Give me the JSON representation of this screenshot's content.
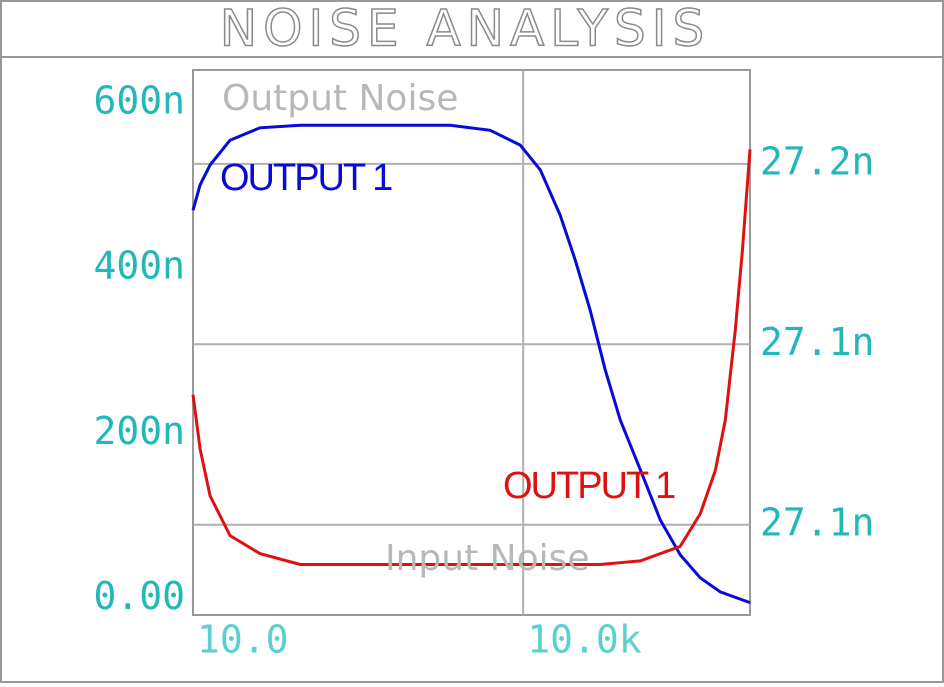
{
  "chart_data": {
    "type": "line",
    "title": "NOISE ANALYSIS",
    "annotations": [
      "Output Noise",
      "Input Noise"
    ],
    "xlog": true,
    "grid": true,
    "xlim": [
      10,
      1150000
    ],
    "xticks": [
      {
        "value": 10,
        "label": "10.0"
      },
      {
        "value": 10000,
        "label": "10.0k"
      }
    ],
    "ylim": [
      -2e-08,
      6.4e-07
    ],
    "yticks": [
      {
        "value": 0,
        "label": "0.00"
      },
      {
        "value": 2e-07,
        "label": "200n"
      },
      {
        "value": 4e-07,
        "label": "400n"
      },
      {
        "value": 6e-07,
        "label": "600n"
      }
    ],
    "y2lim": [
      2.7025e-08,
      2.7176e-08
    ],
    "y2ticks": [
      {
        "value": 2.705e-08,
        "label": "27.1n"
      },
      {
        "value": 2.71e-08,
        "label": "27.1n"
      },
      {
        "value": 2.715e-08,
        "label": "27.2n"
      }
    ],
    "series": [
      {
        "name": "OUTPUT 1",
        "color": "#0a0ad8",
        "x": [
          10,
          11.6,
          14.3,
          21.7,
          40.6,
          94,
          267,
          762,
          2170,
          5010,
          9400,
          14300,
          21700,
          29700,
          40600,
          55600,
          76200,
          116000,
          176000,
          267000,
          406000,
          618000,
          1150000
        ],
        "values": [
          4.7e-07,
          5.01e-07,
          5.25e-07,
          5.55e-07,
          5.7e-07,
          5.73e-07,
          5.73e-07,
          5.73e-07,
          5.73e-07,
          5.67e-07,
          5.49e-07,
          5.19e-07,
          4.64e-07,
          4.1e-07,
          3.49e-07,
          2.77e-07,
          2.16e-07,
          1.56e-07,
          9.5e-08,
          5.3e-08,
          2.5e-08,
          8e-09,
          -5e-09
        ]
      },
      {
        "name": "OUTPUT 1",
        "color": "#e01010",
        "axis": "y2",
        "x": [
          10,
          11.6,
          14.3,
          21.7,
          40.6,
          94,
          267,
          762,
          2170,
          6180,
          17600,
          50100,
          116000,
          176000,
          267000,
          406000,
          556000,
          686000,
          846000,
          980000,
          1150000
        ],
        "values": [
          2.7086e-08,
          2.7071e-08,
          2.7058e-08,
          2.7047e-08,
          2.7042e-08,
          2.7039e-08,
          2.7039e-08,
          2.7039e-08,
          2.7039e-08,
          2.7039e-08,
          2.7039e-08,
          2.7039e-08,
          2.704e-08,
          2.7042e-08,
          2.7044e-08,
          2.7053e-08,
          2.7065e-08,
          2.7079e-08,
          2.7104e-08,
          2.7126e-08,
          2.7154e-08
        ]
      }
    ]
  }
}
